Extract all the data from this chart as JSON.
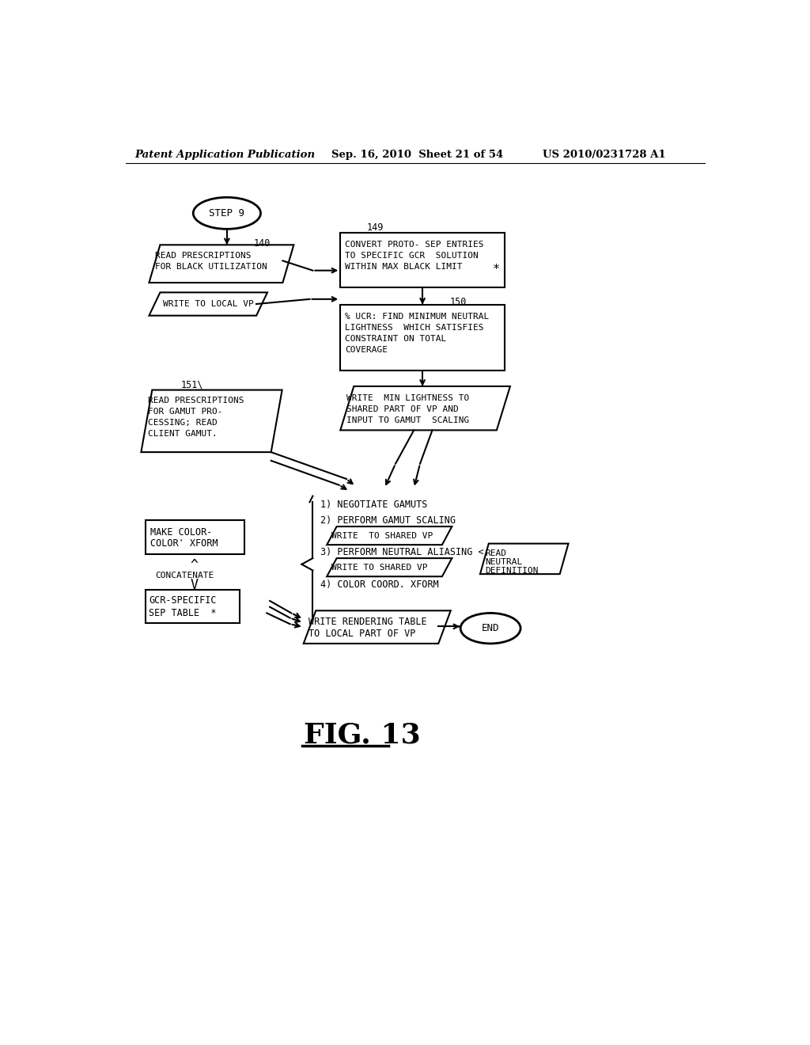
{
  "bg_color": "#ffffff",
  "header_left": "Patent Application Publication",
  "header_mid": "Sep. 16, 2010  Sheet 21 of 54",
  "header_right": "US 2010/0231728 A1",
  "fig_label": "FIG. 13"
}
